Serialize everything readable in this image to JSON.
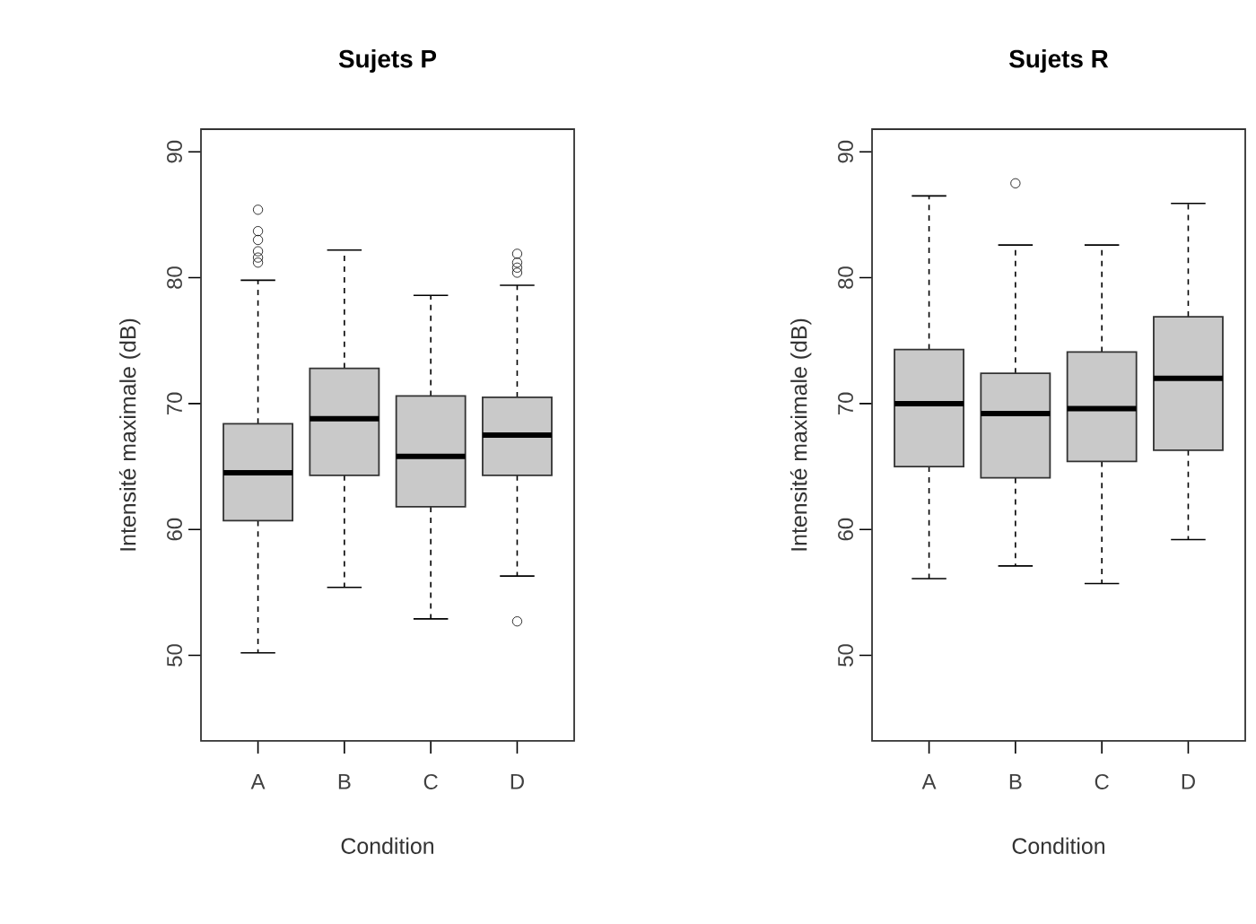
{
  "chart_data": [
    {
      "type": "box",
      "title": "Sujets P",
      "xlabel": "Condition",
      "ylabel": "Intensité maximale (dB)",
      "categories": [
        "A",
        "B",
        "C",
        "D"
      ],
      "ylim": [
        43.2,
        91.8
      ],
      "yticks": [
        50,
        60,
        70,
        80,
        90
      ],
      "boxes": [
        {
          "low": 50.2,
          "q1": 60.7,
          "median": 64.5,
          "q3": 68.4,
          "high": 79.8,
          "outliers": [
            81.2,
            81.6,
            82.1,
            83.0,
            83.7,
            85.4
          ]
        },
        {
          "low": 55.4,
          "q1": 64.3,
          "median": 68.8,
          "q3": 72.8,
          "high": 82.2
        },
        {
          "low": 52.9,
          "q1": 61.8,
          "median": 65.8,
          "q3": 70.6,
          "high": 78.6
        },
        {
          "low": 56.3,
          "q1": 64.3,
          "median": 67.5,
          "q3": 70.5,
          "high": 79.4,
          "outliers": [
            52.7,
            80.4,
            80.8,
            81.2,
            81.9
          ]
        }
      ]
    },
    {
      "type": "box",
      "title": "Sujets R",
      "xlabel": "Condition",
      "ylabel": "Intensité maximale (dB)",
      "categories": [
        "A",
        "B",
        "C",
        "D"
      ],
      "ylim": [
        43.2,
        91.8
      ],
      "yticks": [
        50,
        60,
        70,
        80,
        90
      ],
      "boxes": [
        {
          "low": 56.1,
          "q1": 65.0,
          "median": 70.0,
          "q3": 74.3,
          "high": 86.5
        },
        {
          "low": 57.1,
          "q1": 64.1,
          "median": 69.2,
          "q3": 72.4,
          "high": 82.6,
          "outliers": [
            87.5
          ]
        },
        {
          "low": 55.7,
          "q1": 65.4,
          "median": 69.6,
          "q3": 74.1,
          "high": 82.6
        },
        {
          "low": 59.2,
          "q1": 66.3,
          "median": 72.0,
          "q3": 76.9,
          "high": 85.9
        }
      ]
    }
  ]
}
